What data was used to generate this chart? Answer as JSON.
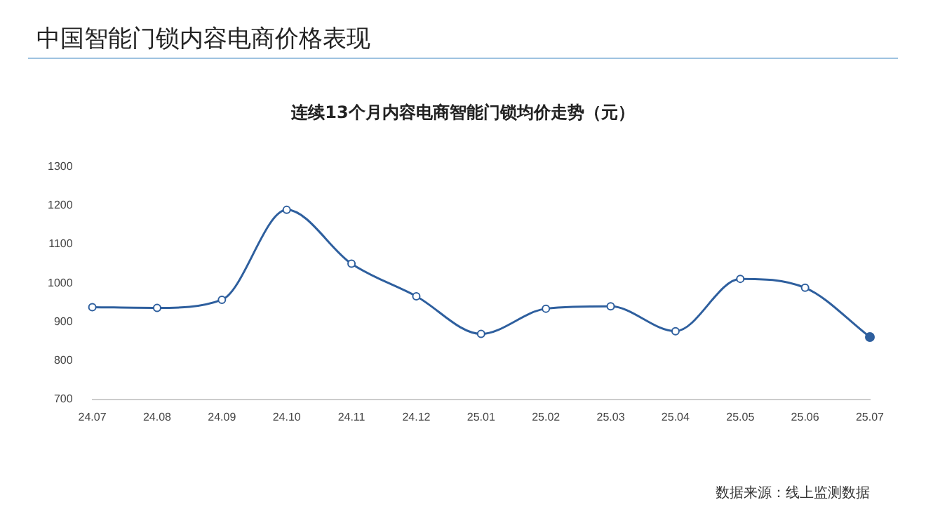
{
  "chart_data": {
    "type": "line",
    "title": "中国智能门锁内容电商价格表现",
    "subtitle": "连续13个月内容电商智能门锁均价走势（元）",
    "categories": [
      "24.07",
      "24.08",
      "24.09",
      "24.10",
      "24.11",
      "24.12",
      "25.01",
      "25.02",
      "25.03",
      "25.04",
      "25.05",
      "25.06",
      "25.07"
    ],
    "series": [
      {
        "color": "#2e5f9e",
        "values": [
          938,
          936,
          957,
          1189,
          1050,
          966,
          869,
          934,
          940,
          876,
          1011,
          988,
          861
        ]
      }
    ],
    "ylim": [
      700,
      1300
    ],
    "yticks": [
      700,
      800,
      900,
      1000,
      1100,
      1200,
      1300
    ],
    "grid": false,
    "legend": false,
    "marker": "circle",
    "line_style": "solid",
    "annotations": [
      "数据来源：线上监测数据"
    ]
  }
}
